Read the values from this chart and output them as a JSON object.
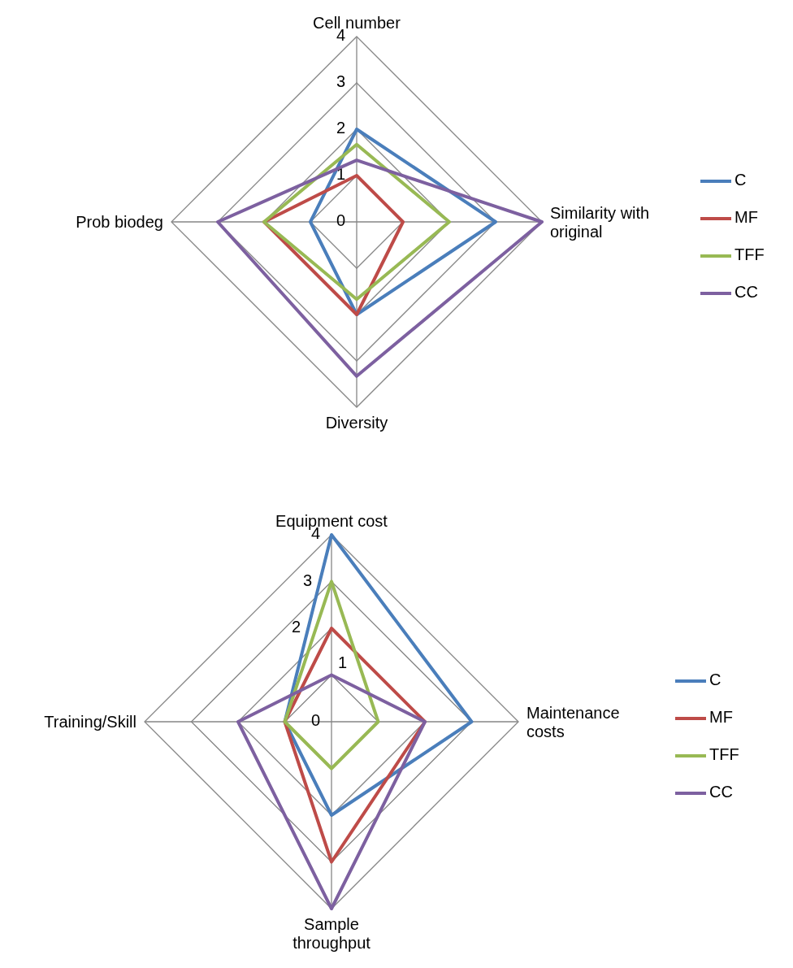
{
  "chart_data": [
    {
      "type": "radar",
      "categories": [
        "Cell number",
        "Similarity with original",
        "Diversity",
        "Prob biodeg"
      ],
      "ylim": [
        0,
        4
      ],
      "yticks": [
        0,
        1,
        2,
        3,
        4
      ],
      "grid": true,
      "legend": "right",
      "series": [
        {
          "name": "C",
          "color": "#4a7ebb",
          "values": [
            2,
            3,
            2,
            1
          ]
        },
        {
          "name": "MF",
          "color": "#be4b48",
          "values": [
            1,
            1,
            2,
            2
          ]
        },
        {
          "name": "TFF",
          "color": "#98b954",
          "values": [
            1.67,
            2,
            1.67,
            2
          ]
        },
        {
          "name": "CC",
          "color": "#7d60a0",
          "values": [
            1.33,
            4,
            3.33,
            3
          ]
        }
      ]
    },
    {
      "type": "radar",
      "categories": [
        "Equipment cost",
        "Maintenance costs",
        "Sample throughput",
        "Training/Skill"
      ],
      "ylim": [
        0,
        4
      ],
      "yticks": [
        0,
        1,
        2,
        3,
        4
      ],
      "grid": true,
      "legend": "right",
      "series": [
        {
          "name": "C",
          "color": "#4a7ebb",
          "values": [
            4,
            3,
            2,
            1
          ]
        },
        {
          "name": "MF",
          "color": "#be4b48",
          "values": [
            2,
            2,
            3,
            1
          ]
        },
        {
          "name": "TFF",
          "color": "#98b954",
          "values": [
            3,
            1,
            1,
            1
          ]
        },
        {
          "name": "CC",
          "color": "#7d60a0",
          "values": [
            1,
            2,
            4,
            2
          ]
        }
      ]
    }
  ]
}
